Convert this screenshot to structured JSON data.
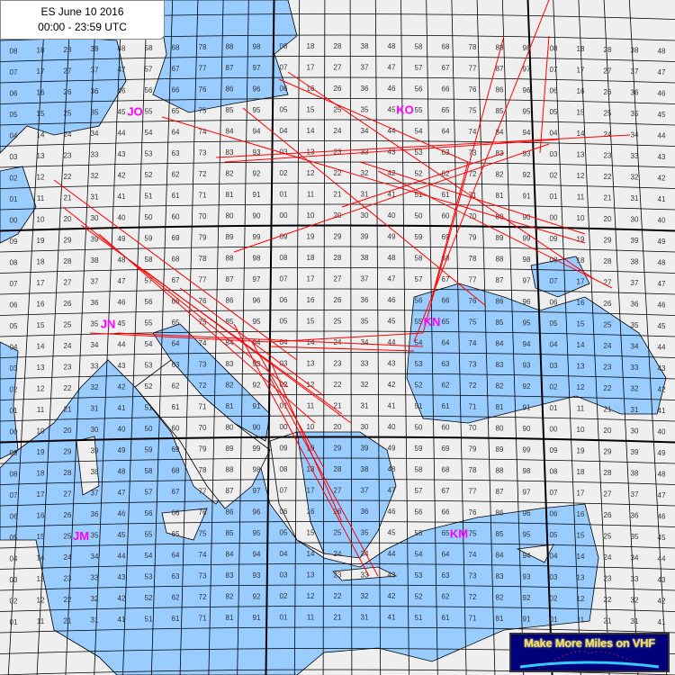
{
  "title": {
    "line1": "ES June 10 2016",
    "line2": "00:00 - 23:59 UTC"
  },
  "logo": {
    "text": "Make More Miles on VHF"
  },
  "colors": {
    "land": "#efefef",
    "sea": "#99ccff",
    "grid": "#000000",
    "paths": "#ff0000",
    "field_labels": "#ff00ff"
  },
  "fields": [
    "JO",
    "KO",
    "JN",
    "KN",
    "JM",
    "KM"
  ],
  "squares": [
    "08 18 28 38 48 58 68 78 88 98 08 18 28 38 48 58 68 78 88 98 08 18 28 38 48",
    "07 17 27 37 47 57 67 77 87 97 07 17 27 37 47 57 67 77 87 97 07 17 27 37 47",
    "06 16 26 36 46 56 66 76 86 96 06 16 26 36 46 56 66 76 86 96 06 16 26 36 46",
    "05 15 25 35 45 55 65 75 85 95 05 15 25 35 45 55 65 75 85 95 05 15 25 35 45",
    "04 14 24 34 44 54 64 74 84 94 04 14 24 34 44 54 64 74 84 94 04 14 24 34 44",
    "03 13 23 33 43 53 63 73 83 93 03 13 23 33 43 53 63 73 83 93 03 13 23 33 43",
    "02 12 22 32 42 52 62 72 82 92 02 12 22 32 42 52 62 72 82 92 02 12 22 32 42",
    "01 11 21 31 41 51 61 71 81 91 01 11 21 31 41 51 61 71 81 91 01 11 21 31 41",
    "00 10 20 30 40 50 60 70 80 90 00 10 20 30 40 50 60 70 80 90 00 10 20 30 40",
    "09 19 29 39 49 59 69 79 89 99 09 19 29 39 49 59 69 79 89 99 09 19 29 39 49",
    "08 18 28 38 48 58 68 78 88 98 08 18 28 38 48 58 68 78 88 98 08 18 28 38 48",
    "07 17 27 37 47 57 67 77 87 97 07 17 27 37 47 57 67 77 87 97 07 17 27 37 47",
    "06 16 26 36 46 56 66 76 86 96 06 16 26 36 46 56 66 76 86 96 06 16 26 36 46",
    "05 15 25 35 45 55 65 75 85 95 05 15 25 35 45 55 65 75 85 95 05 15 25 35 45",
    "04 14 24 34 44 54 64 74 84 94 04 14 24 34 44 54 64 74 84 94 04 14 24 34 44",
    "03 13 23 33 43 53 63 73 83 93 03 13 23 33 43 53 63 73 83 93 03 13 23 33 43",
    "02 12 22 32 42 52 62 72 82 92 02 12 22 32 42 52 62 72 82 92 02 12 22 32 42",
    "01 11 21 31 41 51 61 71 81 91 01 11 21 31 41 51 61 71 81 91 01 11 21 31 41",
    "00 10 20 30 40 50 60 70 80 90 00 10 20 30 40 50 60 70 80 90 00 10 20 30 40",
    "09 19 29 39 49 59 69 79 89 99 09 19 29 39 49 59 69 79 89 99 09 19 29 39 49",
    "08 18 28 38 48 58 68 78 88 98 08 18 28 38 48 58 68 78 88 98 08 18 28 38 48",
    "07 17 27 37 47 57 67 77 87 97 07 17 27 37 47 57 67 77 87 97 07 17 27 37 47",
    "06 16 26 36 46 56 66 76 86 96 06 16 26 36 46 56 66 76 86 96 06 16 26 36 46",
    "05 15 25 35 45 55 65 75 85 95 05 15 25 35 45 55 65 75 85 95 05 15 25 35 45",
    "04 14 24 34 44 54 64 74 84 94 04 14 24 34 44 54 64 74 84 94 04 14 24 34 44",
    "03 13 23 33 43 53 63 73 83 93 03 13 23 33 43 53 63 73 83 93 03 13 23 33 43",
    "02 12 22 32 42 52 62 72 82 92 02 12 22 32 42 52 62 72 82 92 02 12 22 32 42",
    "01 11 21 31 41 51 61 71 81 91 01 11 21 31 41 51 61 71 81 91 01 11 21 31 41"
  ]
}
